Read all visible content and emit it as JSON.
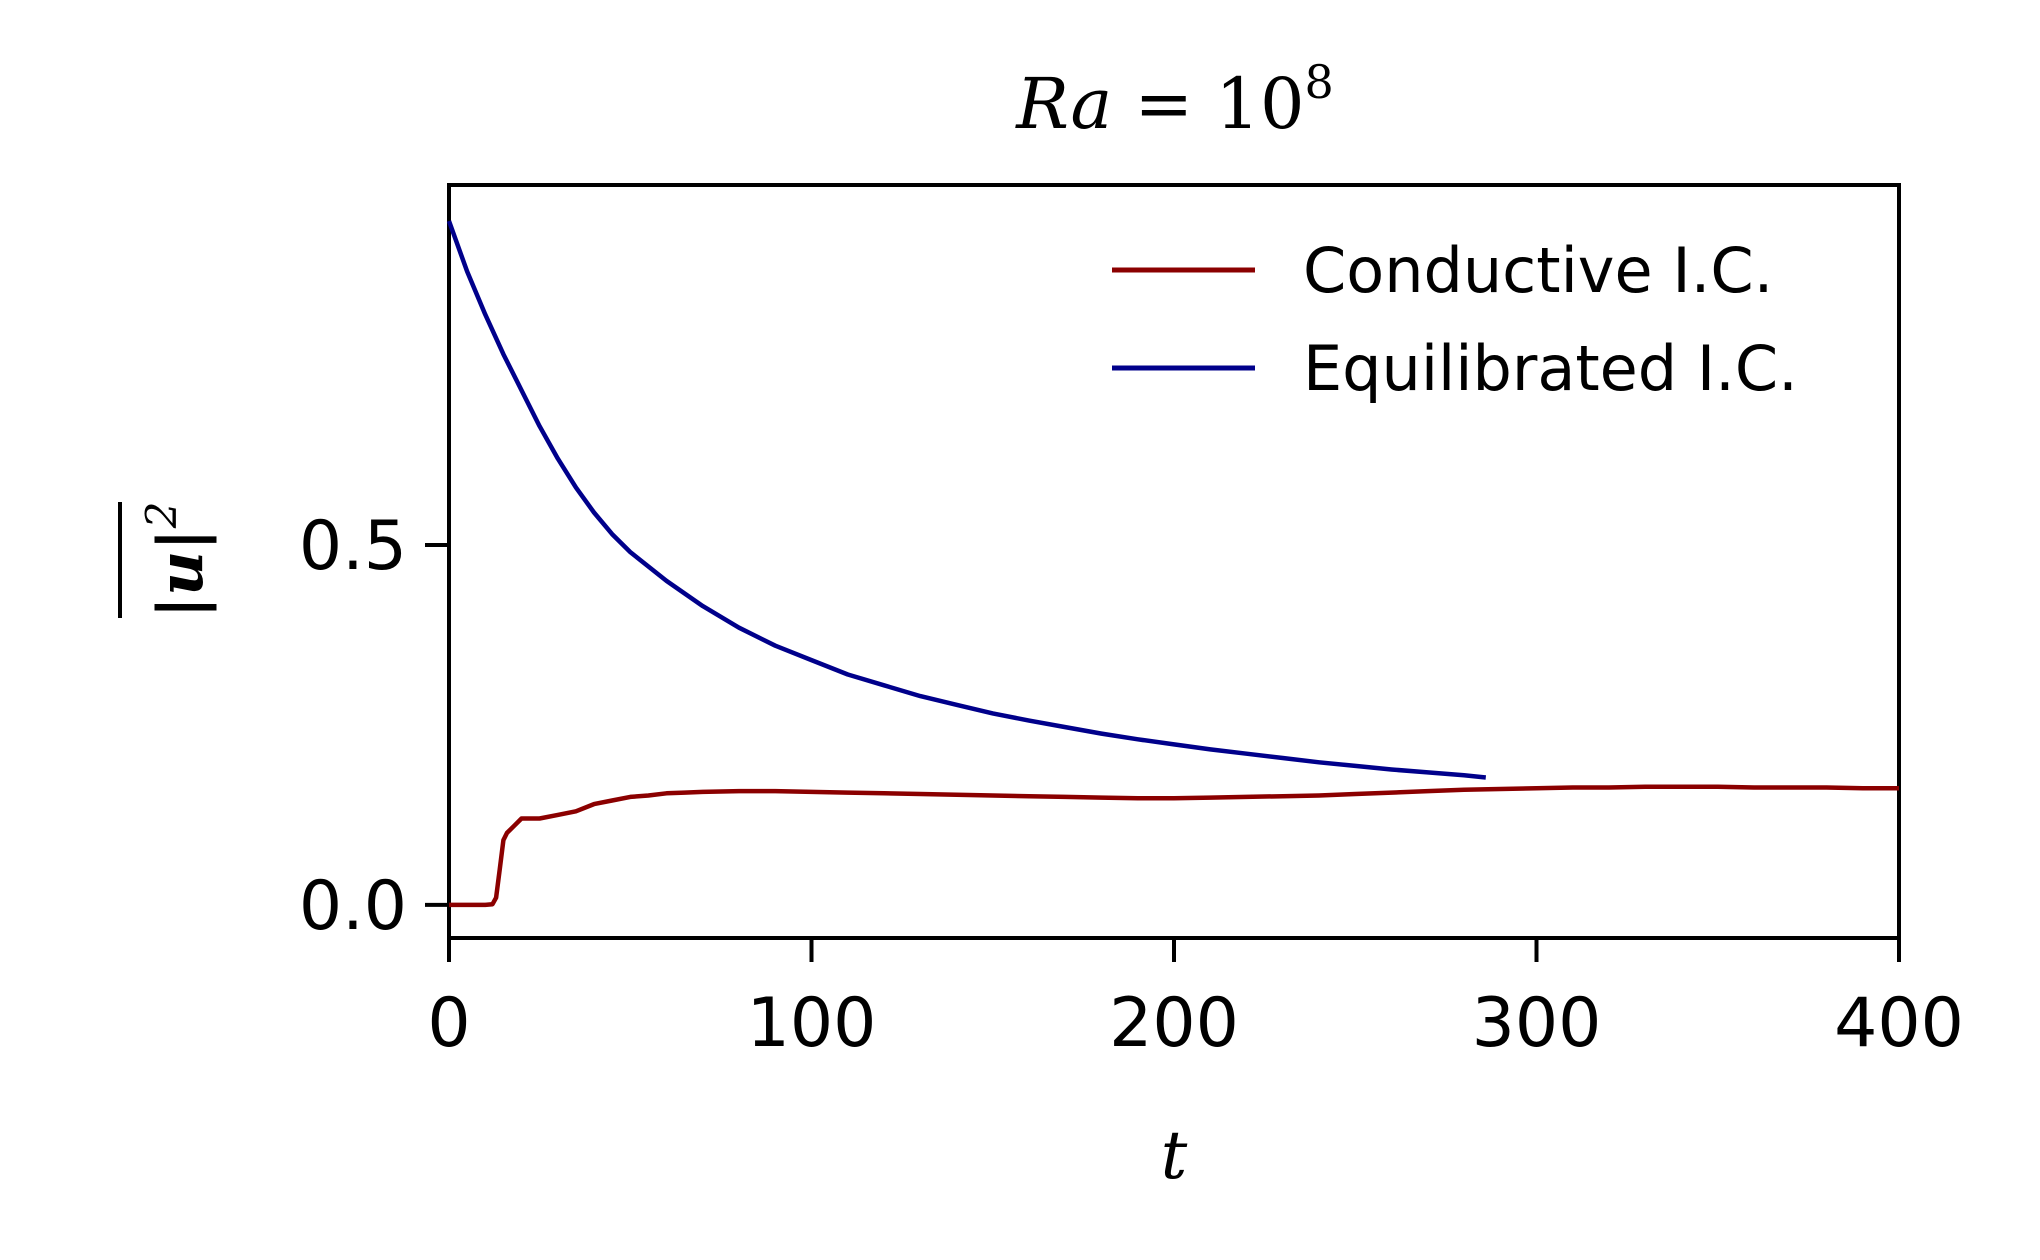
{
  "chart_data": {
    "type": "line",
    "title": {
      "italic": "Ra",
      "eq": " = 10",
      "sup": "8"
    },
    "xlabel": "t",
    "ylabel": {
      "main": "|u|",
      "sup": "2"
    },
    "xlim": [
      0,
      400
    ],
    "ylim": [
      -0.046,
      1.0
    ],
    "xticks": [
      0,
      100,
      200,
      300,
      400
    ],
    "xtick_labels": [
      "0",
      "100",
      "200",
      "300",
      "400"
    ],
    "yticks": [
      0.0,
      0.5
    ],
    "ytick_labels": [
      "0.0",
      "0.5"
    ],
    "grid": false,
    "legend_position": "top-right",
    "series": [
      {
        "name": "Conductive I.C.",
        "color": "#8b0000",
        "x": [
          0,
          5,
          10,
          12,
          13,
          14,
          15,
          16,
          18,
          20,
          22,
          25,
          30,
          35,
          40,
          45,
          50,
          55,
          60,
          65,
          70,
          80,
          90,
          100,
          110,
          120,
          130,
          140,
          150,
          160,
          170,
          180,
          190,
          200,
          210,
          220,
          230,
          240,
          250,
          260,
          270,
          280,
          290,
          300,
          310,
          320,
          330,
          340,
          350,
          360,
          370,
          380,
          390,
          400
        ],
        "y": [
          0.0,
          0.0,
          0.0,
          0.001,
          0.01,
          0.05,
          0.09,
          0.1,
          0.11,
          0.12,
          0.12,
          0.12,
          0.125,
          0.13,
          0.14,
          0.145,
          0.15,
          0.152,
          0.155,
          0.156,
          0.157,
          0.158,
          0.158,
          0.157,
          0.156,
          0.155,
          0.154,
          0.153,
          0.152,
          0.151,
          0.15,
          0.149,
          0.148,
          0.148,
          0.149,
          0.15,
          0.151,
          0.152,
          0.154,
          0.156,
          0.158,
          0.16,
          0.161,
          0.162,
          0.163,
          0.163,
          0.164,
          0.164,
          0.164,
          0.163,
          0.163,
          0.163,
          0.162,
          0.162
        ]
      },
      {
        "name": "Equilibrated I.C.",
        "color": "#00008b",
        "x": [
          0,
          5,
          10,
          15,
          20,
          25,
          30,
          35,
          40,
          45,
          50,
          60,
          70,
          80,
          90,
          100,
          110,
          120,
          130,
          140,
          150,
          160,
          170,
          180,
          190,
          200,
          210,
          220,
          230,
          240,
          250,
          260,
          270,
          280,
          286
        ],
        "y": [
          0.95,
          0.88,
          0.82,
          0.765,
          0.715,
          0.665,
          0.62,
          0.58,
          0.545,
          0.515,
          0.49,
          0.45,
          0.415,
          0.385,
          0.36,
          0.34,
          0.32,
          0.305,
          0.29,
          0.278,
          0.266,
          0.256,
          0.247,
          0.238,
          0.23,
          0.223,
          0.216,
          0.21,
          0.204,
          0.198,
          0.193,
          0.188,
          0.184,
          0.18,
          0.177
        ]
      }
    ]
  }
}
